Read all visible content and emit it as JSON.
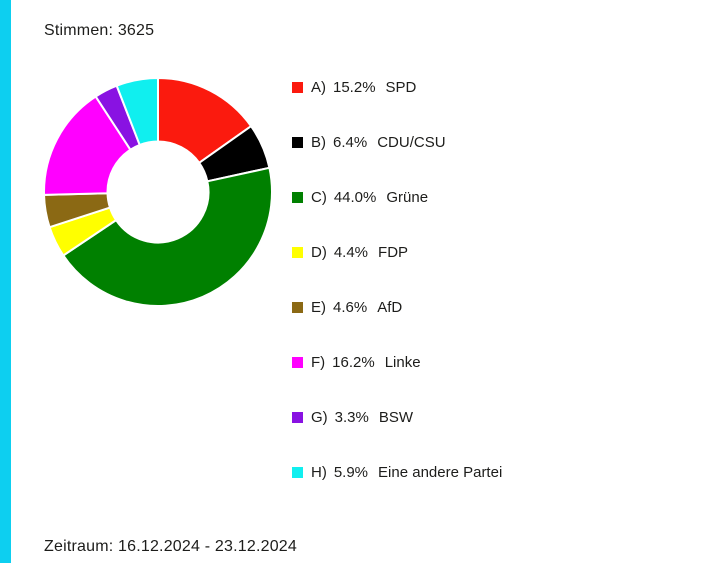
{
  "header": {
    "votes_label": "Stimmen: 3625"
  },
  "footer": {
    "period_label": "Zeitraum: 16.12.2024 - 23.12.2024"
  },
  "colors": {
    "accent_bar": "#0DCFF0",
    "text": "#1d1d1b",
    "background": "#ffffff",
    "segment_separator": "#ffffff"
  },
  "chart_data": {
    "type": "pie",
    "subtype": "donut",
    "title": "Stimmen: 3625",
    "total_votes": 3625,
    "start_angle_deg": 0,
    "direction": "clockwise",
    "inner_radius_ratio": 0.443,
    "legend_position": "right",
    "segments": [
      {
        "letter_label": "A)",
        "percent": 15.2,
        "name": "SPD",
        "color": "#FB1A0E"
      },
      {
        "letter_label": "B)",
        "percent": 6.4,
        "name": "CDU/CSU",
        "color": "#000000"
      },
      {
        "letter_label": "C)",
        "percent": 44.0,
        "name": "Grüne",
        "color": "#008000"
      },
      {
        "letter_label": "D)",
        "percent": 4.4,
        "name": "FDP",
        "color": "#FFFF00"
      },
      {
        "letter_label": "E)",
        "percent": 4.6,
        "name": "AfD",
        "color": "#8B6914"
      },
      {
        "letter_label": "F)",
        "percent": 16.2,
        "name": "Linke",
        "color": "#FF00FF"
      },
      {
        "letter_label": "G)",
        "percent": 3.3,
        "name": "BSW",
        "color": "#8912E2"
      },
      {
        "letter_label": "H)",
        "percent": 5.9,
        "name": "Eine andere Partei",
        "color": "#10EFEF"
      }
    ]
  }
}
